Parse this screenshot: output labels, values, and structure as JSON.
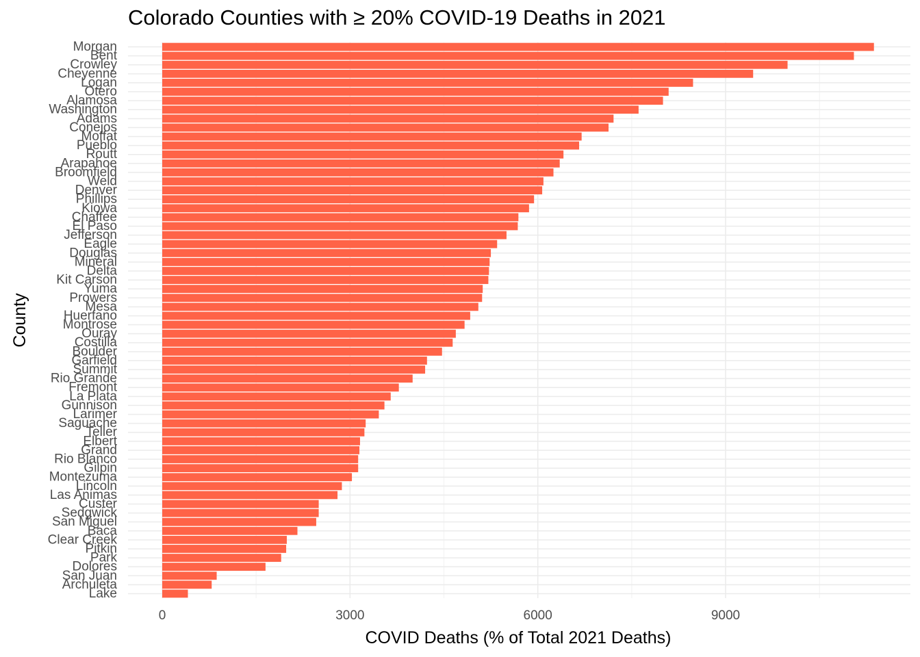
{
  "chart_data": {
    "type": "bar",
    "orientation": "horizontal",
    "title": "Colorado Counties with ≥ 20% COVID-19 Deaths in 2021",
    "xlabel": "COVID Deaths (% of Total 2021 Deaths)",
    "ylabel": "County",
    "xlim": [
      0,
      11500
    ],
    "xticks": [
      0,
      3000,
      6000,
      9000
    ],
    "xtick_labels": [
      "0",
      "3000",
      "6000",
      "9000"
    ],
    "grid": true,
    "bar_color": "#FF6347",
    "categories": [
      "Morgan",
      "Bent",
      "Crowley",
      "Cheyenne",
      "Logan",
      "Otero",
      "Alamosa",
      "Washington",
      "Adams",
      "Conejos",
      "Moffat",
      "Pueblo",
      "Routt",
      "Arapahoe",
      "Broomfield",
      "Weld",
      "Denver",
      "Phillips",
      "Kiowa",
      "Chaffee",
      "El Paso",
      "Jefferson",
      "Eagle",
      "Douglas",
      "Mineral",
      "Delta",
      "Kit Carson",
      "Yuma",
      "Prowers",
      "Mesa",
      "Huerfano",
      "Montrose",
      "Ouray",
      "Costilla",
      "Boulder",
      "Garfield",
      "Summit",
      "Rio Grande",
      "Fremont",
      "La Plata",
      "Gunnison",
      "Larimer",
      "Saguache",
      "Teller",
      "Elbert",
      "Grand",
      "Rio Blanco",
      "Gilpin",
      "Montezuma",
      "Lincoln",
      "Las Animas",
      "Custer",
      "Sedgwick",
      "San Miguel",
      "Baca",
      "Clear Creek",
      "Pitkin",
      "Park",
      "Dolores",
      "San Juan",
      "Archuleta",
      "Lake"
    ],
    "values": [
      11370,
      11050,
      9990,
      9440,
      8480,
      8090,
      8000,
      7610,
      7210,
      7130,
      6700,
      6660,
      6410,
      6350,
      6250,
      6090,
      6070,
      5940,
      5860,
      5690,
      5680,
      5500,
      5350,
      5250,
      5230,
      5220,
      5210,
      5120,
      5110,
      5050,
      4920,
      4830,
      4690,
      4640,
      4470,
      4230,
      4200,
      4000,
      3780,
      3650,
      3550,
      3460,
      3250,
      3230,
      3160,
      3150,
      3130,
      3130,
      3030,
      2870,
      2800,
      2500,
      2500,
      2460,
      2160,
      1990,
      1980,
      1900,
      1650,
      870,
      790,
      410
    ]
  }
}
